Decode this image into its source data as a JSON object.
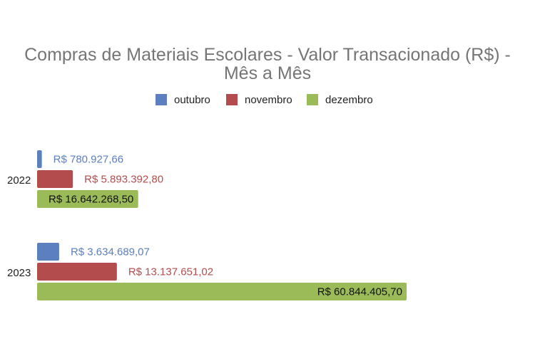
{
  "chart_data": {
    "type": "bar",
    "orientation": "horizontal",
    "title_lines": [
      "Compras de Materiais Escolares - Valor Transacionado (R$) -",
      "Mês a Mês"
    ],
    "categories": [
      "2022",
      "2023"
    ],
    "series": [
      {
        "name": "outubro",
        "color": "#5b7fbf",
        "values": [
          780927.66,
          3634689.07
        ],
        "labels": [
          "R$ 780.927,66",
          "R$ 3.634.689,07"
        ],
        "label_color": "#5b7fbf"
      },
      {
        "name": "novembro",
        "color": "#b34d4d",
        "values": [
          5893392.8,
          13137651.02
        ],
        "labels": [
          "R$ 5.893.392,80",
          "R$ 13.137.651,02"
        ],
        "label_color": "#b34d4d"
      },
      {
        "name": "dezembro",
        "color": "#9bbb59",
        "values": [
          16642268.5,
          60844405.7
        ],
        "labels": [
          "R$ 16.642.268,50",
          "R$ 60.844.405,70"
        ],
        "label_color": "#111111"
      }
    ],
    "legend_position": "top",
    "grid": false,
    "xlim": [
      0,
      60844405.7
    ]
  }
}
